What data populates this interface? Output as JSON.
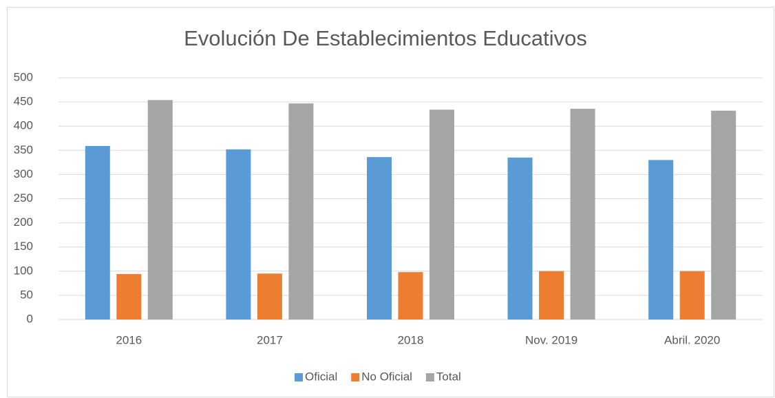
{
  "chart_data": {
    "type": "bar",
    "title": "Evolución De Establecimientos Educativos",
    "categories": [
      "2016",
      "2017",
      "2018",
      "Nov. 2019",
      "Abril. 2020"
    ],
    "series": [
      {
        "name": "Oficial",
        "color": "#5b9bd5",
        "values": [
          359,
          352,
          336,
          335,
          330
        ]
      },
      {
        "name": "No Oficial",
        "color": "#ed7d31",
        "values": [
          94,
          95,
          98,
          100,
          100
        ]
      },
      {
        "name": "Total",
        "color": "#a5a5a5",
        "values": [
          454,
          447,
          434,
          436,
          432
        ]
      }
    ],
    "ylim": [
      0,
      500
    ],
    "yticks": [
      0,
      50,
      100,
      150,
      200,
      250,
      300,
      350,
      400,
      450,
      500
    ],
    "grid": true,
    "legend": "bottom"
  }
}
